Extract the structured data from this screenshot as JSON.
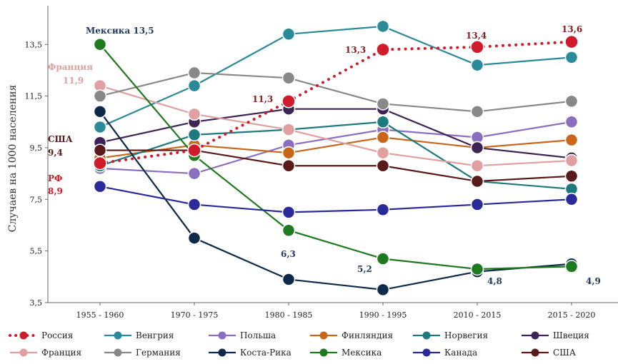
{
  "chart_data": {
    "type": "line",
    "title": "",
    "xlabel": "",
    "ylabel": "Случаев на 1000 населения",
    "ylim": [
      3.5,
      15
    ],
    "yticks": [
      "3,5",
      "5,5",
      "7,5",
      "9,5",
      "11,5",
      "13,5"
    ],
    "ytick_values": [
      3.5,
      5.5,
      7.5,
      9.5,
      11.5,
      13.5
    ],
    "categories": [
      "1955 - 1960",
      "1970 - 1975",
      "1980 - 1985",
      "1990 - 1995",
      "2010 - 2015",
      "2015 - 2020"
    ],
    "grid": false,
    "legend_position": "bottom",
    "series": [
      {
        "name": "Россия",
        "color": "#d01c2a",
        "style": "dotted",
        "values": [
          8.9,
          9.4,
          11.3,
          13.3,
          13.4,
          13.6
        ]
      },
      {
        "name": "Венгрия",
        "color": "#2a8a9a",
        "style": "solid",
        "values": [
          10.3,
          11.9,
          13.9,
          14.2,
          12.7,
          13.0
        ]
      },
      {
        "name": "Польша",
        "color": "#8a6fc0",
        "style": "solid",
        "values": [
          8.7,
          8.5,
          9.6,
          10.2,
          9.9,
          10.5
        ]
      },
      {
        "name": "Финляндия",
        "color": "#c8661a",
        "style": "solid",
        "values": [
          9.1,
          9.6,
          9.3,
          9.9,
          9.5,
          9.8
        ]
      },
      {
        "name": "Норвегия",
        "color": "#1f7a80",
        "style": "solid",
        "values": [
          8.8,
          10.0,
          10.2,
          10.5,
          8.2,
          7.9
        ]
      },
      {
        "name": "Швеция",
        "color": "#3d2455",
        "style": "solid",
        "values": [
          9.7,
          10.5,
          11.0,
          11.0,
          9.5,
          9.1
        ]
      },
      {
        "name": "Франция",
        "color": "#e0a0a0",
        "style": "solid",
        "values": [
          11.9,
          10.8,
          10.2,
          9.3,
          8.8,
          9.0
        ]
      },
      {
        "name": "Германия",
        "color": "#888888",
        "style": "solid",
        "values": [
          11.5,
          12.4,
          12.2,
          11.2,
          10.9,
          11.3
        ]
      },
      {
        "name": "Коста-Рика",
        "color": "#0d2a4a",
        "style": "solid",
        "values": [
          10.9,
          6.0,
          4.4,
          4.0,
          4.7,
          5.0
        ]
      },
      {
        "name": "Мексика",
        "color": "#1e7a1e",
        "style": "solid",
        "values": [
          13.5,
          9.2,
          6.3,
          5.2,
          4.8,
          4.9
        ]
      },
      {
        "name": "Канада",
        "color": "#2a2a9a",
        "style": "solid",
        "values": [
          8.0,
          7.3,
          7.0,
          7.1,
          7.3,
          7.5
        ]
      },
      {
        "name": "США",
        "color": "#5a1a1a",
        "style": "solid",
        "values": [
          9.4,
          9.4,
          8.8,
          8.8,
          8.2,
          8.4
        ]
      }
    ],
    "annotations": [
      {
        "text": "Мексика 13,5",
        "color": "#1e3a5f"
      },
      {
        "text": "Франция",
        "color": "#e0a0a0"
      },
      {
        "text": "11,9",
        "color": "#e0a0a0"
      },
      {
        "text": "США",
        "color": "#5a1a1a"
      },
      {
        "text": "9,4",
        "color": "#5a1a1a"
      },
      {
        "text": "РФ",
        "color": "#d01c2a"
      },
      {
        "text": "8,9",
        "color": "#d01c2a"
      },
      {
        "text": "11,3",
        "color": "#8b1a1a"
      },
      {
        "text": "13,3",
        "color": "#8b1a1a"
      },
      {
        "text": "13,4",
        "color": "#8b1a1a"
      },
      {
        "text": "13,6",
        "color": "#8b1a1a"
      },
      {
        "text": "6,3",
        "color": "#1e3a5f"
      },
      {
        "text": "5,2",
        "color": "#1e3a5f"
      },
      {
        "text": "4,8",
        "color": "#1e3a5f"
      },
      {
        "text": "4,9",
        "color": "#1e3a5f"
      }
    ]
  }
}
